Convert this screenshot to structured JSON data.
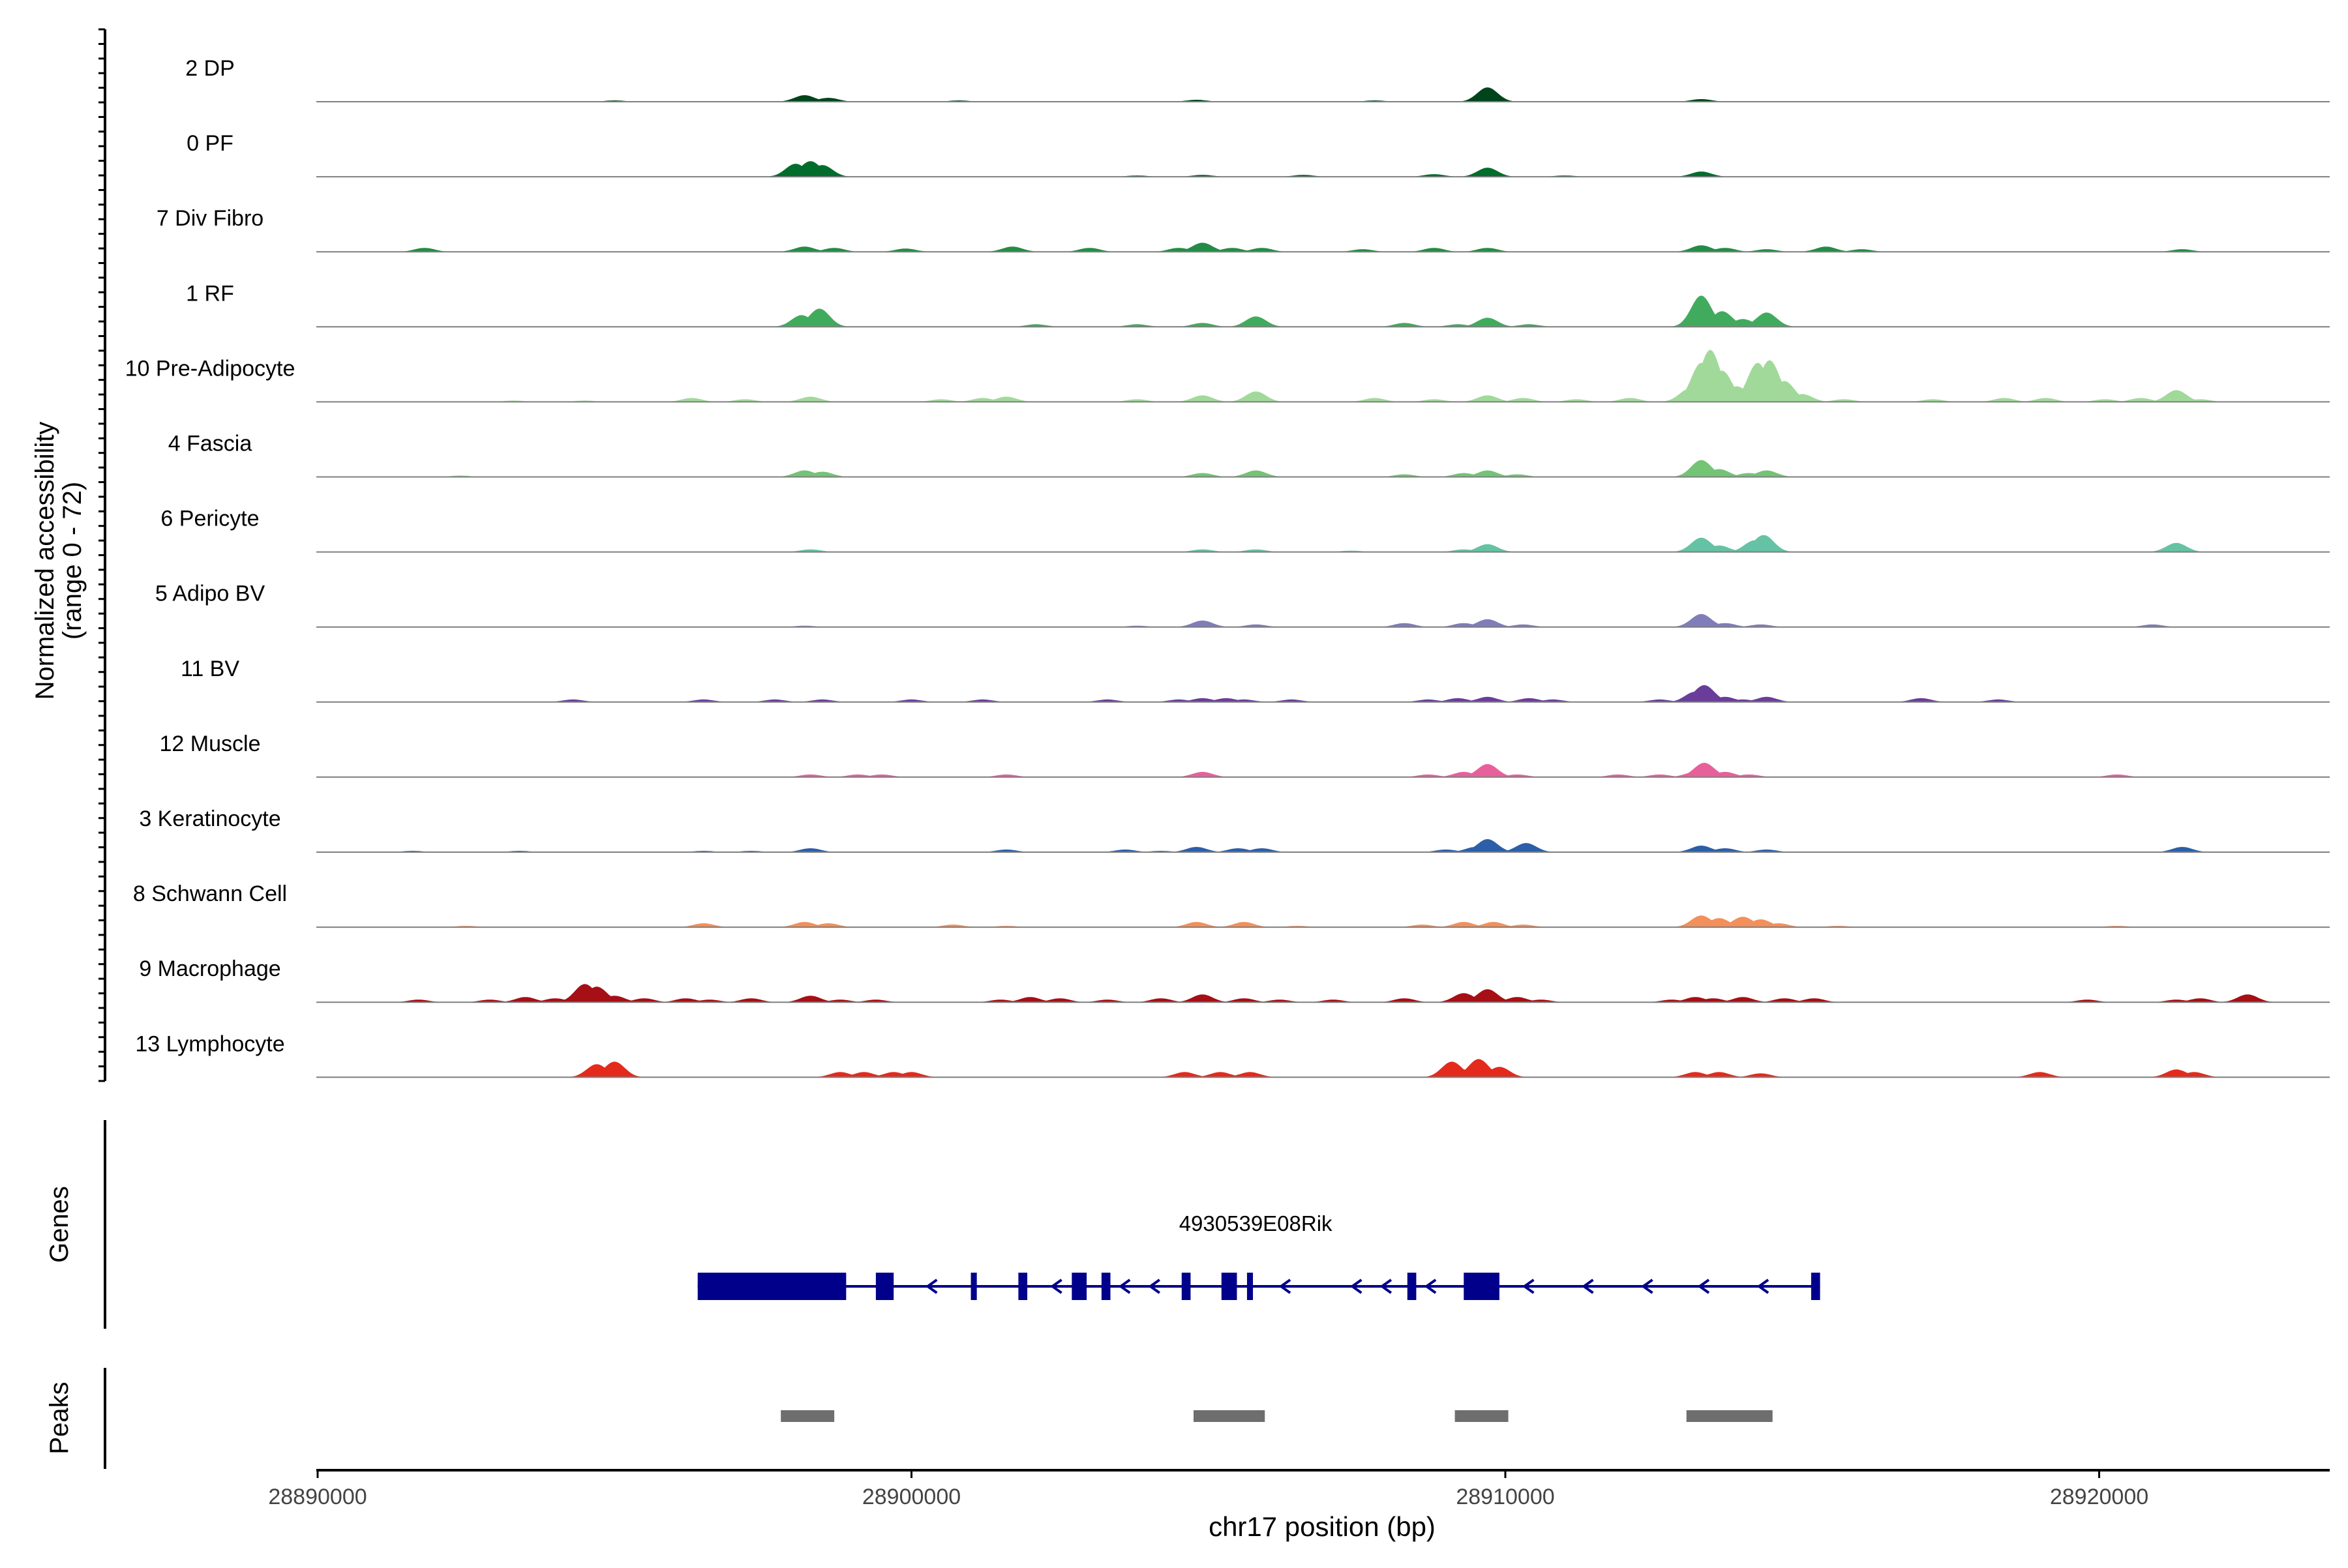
{
  "chart_data": {
    "type": "area",
    "title": "",
    "y_axis_label_line1": "Normalized accessibility",
    "y_axis_label_line2": "(range 0 - 72)",
    "y_range": [
      0,
      72
    ],
    "x_axis_label": "chr17 position (bp)",
    "x_range": [
      28890000,
      28924000
    ],
    "x_ticks": [
      28890000,
      28900000,
      28910000,
      28920000
    ],
    "x_tick_labels": [
      "28890000",
      "28900000",
      "28910000",
      "28920000"
    ],
    "tracks": [
      {
        "name": "2 DP",
        "color": "#00441b",
        "peaks": [
          [
            28898200,
            5
          ],
          [
            28898600,
            3
          ],
          [
            28909700,
            11
          ],
          [
            28904800,
            1.5
          ],
          [
            28913300,
            2
          ],
          [
            28907800,
            1
          ],
          [
            28900800,
            1
          ],
          [
            28895000,
            1
          ]
        ]
      },
      {
        "name": "0 PF",
        "color": "#006d2c",
        "peaks": [
          [
            28898050,
            10
          ],
          [
            28898300,
            12
          ],
          [
            28898500,
            9
          ],
          [
            28909700,
            7
          ],
          [
            28913300,
            4
          ],
          [
            28904900,
            1.5
          ],
          [
            28906600,
            1.5
          ],
          [
            28908800,
            2
          ],
          [
            28911000,
            1
          ],
          [
            28903800,
            1
          ]
        ]
      },
      {
        "name": "7 Div Fibro",
        "color": "#238b45",
        "peaks": [
          [
            28891800,
            3
          ],
          [
            28898200,
            4
          ],
          [
            28898700,
            3
          ],
          [
            28899900,
            2.5
          ],
          [
            28901700,
            4
          ],
          [
            28903000,
            3
          ],
          [
            28904500,
            3
          ],
          [
            28904900,
            7
          ],
          [
            28905400,
            3
          ],
          [
            28905900,
            3
          ],
          [
            28907600,
            2
          ],
          [
            28908800,
            3
          ],
          [
            28909700,
            3
          ],
          [
            28913300,
            5
          ],
          [
            28913700,
            3
          ],
          [
            28914400,
            2
          ],
          [
            28915400,
            4
          ],
          [
            28916000,
            2
          ],
          [
            28921400,
            2
          ]
        ]
      },
      {
        "name": "1 RF",
        "color": "#41ab5d",
        "peaks": [
          [
            28898150,
            9
          ],
          [
            28898450,
            14
          ],
          [
            28905800,
            8
          ],
          [
            28904900,
            3
          ],
          [
            28908300,
            3
          ],
          [
            28909200,
            2
          ],
          [
            28909700,
            7
          ],
          [
            28910400,
            2
          ],
          [
            28913300,
            24
          ],
          [
            28913650,
            12
          ],
          [
            28914400,
            11
          ],
          [
            28914000,
            6
          ],
          [
            28902100,
            2
          ],
          [
            28903800,
            2
          ]
        ]
      },
      {
        "name": "10 Pre-Adipocyte",
        "color": "#a1d99b",
        "peaks": [
          [
            28893300,
            1
          ],
          [
            28894500,
            1
          ],
          [
            28896300,
            3
          ],
          [
            28897200,
            2
          ],
          [
            28898300,
            4
          ],
          [
            28900500,
            2
          ],
          [
            28901200,
            3
          ],
          [
            28901600,
            4
          ],
          [
            28903800,
            2
          ],
          [
            28904900,
            5
          ],
          [
            28905800,
            8
          ],
          [
            28907800,
            3
          ],
          [
            28908800,
            2
          ],
          [
            28909700,
            5
          ],
          [
            28910300,
            3
          ],
          [
            28911200,
            2
          ],
          [
            28912100,
            3
          ],
          [
            28913100,
            10
          ],
          [
            28913300,
            30
          ],
          [
            28913450,
            40
          ],
          [
            28913650,
            24
          ],
          [
            28913900,
            12
          ],
          [
            28914250,
            30
          ],
          [
            28914450,
            32
          ],
          [
            28914700,
            16
          ],
          [
            28915000,
            6
          ],
          [
            28915700,
            2
          ],
          [
            28917200,
            2
          ],
          [
            28918400,
            3
          ],
          [
            28919100,
            3
          ],
          [
            28920100,
            2
          ],
          [
            28920700,
            3
          ],
          [
            28921300,
            9
          ],
          [
            28921700,
            2
          ]
        ]
      },
      {
        "name": "4 Fascia",
        "color": "#74c476",
        "peaks": [
          [
            28898200,
            5
          ],
          [
            28898500,
            4
          ],
          [
            28904900,
            3
          ],
          [
            28905800,
            5
          ],
          [
            28908300,
            2
          ],
          [
            28909300,
            3
          ],
          [
            28909700,
            5
          ],
          [
            28910200,
            2
          ],
          [
            28913300,
            13
          ],
          [
            28913600,
            6
          ],
          [
            28914400,
            5
          ],
          [
            28914100,
            3
          ],
          [
            28892400,
            1
          ]
        ]
      },
      {
        "name": "6 Pericyte",
        "color": "#66c2a4",
        "peaks": [
          [
            28898300,
            2
          ],
          [
            28904900,
            2
          ],
          [
            28905800,
            2
          ],
          [
            28909700,
            6
          ],
          [
            28909300,
            2
          ],
          [
            28913300,
            11
          ],
          [
            28913600,
            5
          ],
          [
            28914200,
            9
          ],
          [
            28914350,
            13
          ],
          [
            28921300,
            7
          ],
          [
            28907400,
            1
          ]
        ]
      },
      {
        "name": "5 Adipo BV",
        "color": "#807dba",
        "peaks": [
          [
            28904900,
            5
          ],
          [
            28905800,
            2
          ],
          [
            28908300,
            3
          ],
          [
            28909300,
            3
          ],
          [
            28909700,
            6
          ],
          [
            28910300,
            2
          ],
          [
            28913300,
            10
          ],
          [
            28913700,
            3
          ],
          [
            28914300,
            2
          ],
          [
            28920900,
            2
          ],
          [
            28903800,
            1
          ],
          [
            28898200,
            1
          ]
        ]
      },
      {
        "name": "11 BV",
        "color": "#6a3d9a",
        "peaks": [
          [
            28894300,
            2
          ],
          [
            28896500,
            2
          ],
          [
            28897700,
            2
          ],
          [
            28898500,
            2
          ],
          [
            28900000,
            2
          ],
          [
            28901200,
            2
          ],
          [
            28903300,
            2
          ],
          [
            28904500,
            2
          ],
          [
            28904900,
            3
          ],
          [
            28905300,
            3
          ],
          [
            28905600,
            2
          ],
          [
            28906400,
            2
          ],
          [
            28908700,
            2
          ],
          [
            28909200,
            3
          ],
          [
            28909700,
            4
          ],
          [
            28910400,
            3
          ],
          [
            28910800,
            2
          ],
          [
            28912600,
            2
          ],
          [
            28913200,
            8
          ],
          [
            28913350,
            13
          ],
          [
            28913700,
            4
          ],
          [
            28914000,
            2
          ],
          [
            28914400,
            4
          ],
          [
            28917000,
            3
          ],
          [
            28918300,
            2
          ]
        ]
      },
      {
        "name": "12 Muscle",
        "color": "#e7609b",
        "peaks": [
          [
            28898300,
            2
          ],
          [
            28899100,
            2
          ],
          [
            28899500,
            2
          ],
          [
            28901600,
            2
          ],
          [
            28904900,
            4
          ],
          [
            28908700,
            2
          ],
          [
            28909300,
            4
          ],
          [
            28909700,
            10
          ],
          [
            28910200,
            2
          ],
          [
            28911900,
            2
          ],
          [
            28912600,
            2
          ],
          [
            28913200,
            4
          ],
          [
            28913350,
            11
          ],
          [
            28913700,
            4
          ],
          [
            28914100,
            2
          ],
          [
            28920300,
            2
          ]
        ]
      },
      {
        "name": "3 Keratinocyte",
        "color": "#2c5fa8",
        "peaks": [
          [
            28891600,
            1
          ],
          [
            28893400,
            1
          ],
          [
            28896500,
            1
          ],
          [
            28897300,
            1
          ],
          [
            28898300,
            3
          ],
          [
            28901600,
            2
          ],
          [
            28903600,
            2
          ],
          [
            28904200,
            1
          ],
          [
            28904800,
            4
          ],
          [
            28905500,
            3
          ],
          [
            28905900,
            3
          ],
          [
            28909000,
            2
          ],
          [
            28909500,
            4
          ],
          [
            28909700,
            10
          ],
          [
            28910350,
            7
          ],
          [
            28913300,
            5
          ],
          [
            28913700,
            3
          ],
          [
            28914400,
            2
          ],
          [
            28921400,
            4
          ]
        ]
      },
      {
        "name": "8 Schwann Cell",
        "color": "#f38f5a",
        "peaks": [
          [
            28892500,
            1
          ],
          [
            28896500,
            3
          ],
          [
            28898200,
            4
          ],
          [
            28898600,
            3
          ],
          [
            28900700,
            2
          ],
          [
            28901600,
            1
          ],
          [
            28904800,
            4
          ],
          [
            28905600,
            4
          ],
          [
            28906500,
            1
          ],
          [
            28908600,
            2
          ],
          [
            28909300,
            4
          ],
          [
            28909800,
            4
          ],
          [
            28910300,
            2
          ],
          [
            28913300,
            9
          ],
          [
            28913600,
            7
          ],
          [
            28914000,
            8
          ],
          [
            28914300,
            6
          ],
          [
            28914600,
            3
          ],
          [
            28915600,
            1
          ],
          [
            28920300,
            1
          ]
        ]
      },
      {
        "name": "9 Macrophage",
        "color": "#a50f15",
        "peaks": [
          [
            28891700,
            2
          ],
          [
            28892900,
            2
          ],
          [
            28893500,
            4
          ],
          [
            28894000,
            3
          ],
          [
            28894500,
            14
          ],
          [
            28894700,
            12
          ],
          [
            28895000,
            5
          ],
          [
            28895500,
            3
          ],
          [
            28896200,
            3
          ],
          [
            28896600,
            2
          ],
          [
            28897300,
            3
          ],
          [
            28898300,
            5
          ],
          [
            28898800,
            2
          ],
          [
            28899400,
            2
          ],
          [
            28901500,
            2
          ],
          [
            28902000,
            4
          ],
          [
            28902500,
            3
          ],
          [
            28903300,
            2
          ],
          [
            28904200,
            3
          ],
          [
            28904900,
            6
          ],
          [
            28905600,
            3
          ],
          [
            28906200,
            2
          ],
          [
            28907100,
            2
          ],
          [
            28908300,
            3
          ],
          [
            28909300,
            7
          ],
          [
            28909700,
            10
          ],
          [
            28910200,
            4
          ],
          [
            28910600,
            2
          ],
          [
            28912800,
            2
          ],
          [
            28913200,
            4
          ],
          [
            28913500,
            3
          ],
          [
            28914000,
            4
          ],
          [
            28914700,
            3
          ],
          [
            28915200,
            3
          ],
          [
            28919800,
            2
          ],
          [
            28921300,
            2
          ],
          [
            28921700,
            3
          ],
          [
            28922500,
            6
          ]
        ]
      },
      {
        "name": "13 Lymphocyte",
        "color": "#e32a1c",
        "peaks": [
          [
            28894700,
            10
          ],
          [
            28895000,
            12
          ],
          [
            28898800,
            4
          ],
          [
            28899200,
            4
          ],
          [
            28899700,
            4
          ],
          [
            28900000,
            4
          ],
          [
            28904600,
            4
          ],
          [
            28905200,
            4
          ],
          [
            28905700,
            4
          ],
          [
            28909100,
            12
          ],
          [
            28909300,
            6
          ],
          [
            28909550,
            14
          ],
          [
            28909900,
            8
          ],
          [
            28913200,
            4
          ],
          [
            28913600,
            4
          ],
          [
            28914300,
            3
          ],
          [
            28919000,
            4
          ],
          [
            28921300,
            6
          ],
          [
            28921600,
            4
          ]
        ]
      }
    ],
    "genes": {
      "label": "Genes",
      "gene_name": "4930539E08Rik",
      "color": "#00008b",
      "strand": "-",
      "span": [
        28896400,
        28915300
      ],
      "exons": [
        [
          28896400,
          28898900
        ],
        [
          28899400,
          28899700
        ],
        [
          28901000,
          28901100
        ],
        [
          28901800,
          28901950
        ],
        [
          28902700,
          28902950
        ],
        [
          28903200,
          28903350
        ],
        [
          28904550,
          28904700
        ],
        [
          28905220,
          28905480
        ],
        [
          28905650,
          28905750
        ],
        [
          28908350,
          28908500
        ],
        [
          28909300,
          28909900
        ],
        [
          28915150,
          28915300
        ]
      ],
      "arrows": [
        28900350,
        28902450,
        28903600,
        28904100,
        28906300,
        28907500,
        28908000,
        28908750,
        28910400,
        28911400,
        28912400,
        28913350,
        28914350
      ]
    },
    "peaks_track": {
      "label": "Peaks",
      "color": "#6e6e6e",
      "regions": [
        [
          28897800,
          28898700
        ],
        [
          28904750,
          28905950
        ],
        [
          28909150,
          28910050
        ],
        [
          28913050,
          28914500
        ]
      ]
    }
  }
}
